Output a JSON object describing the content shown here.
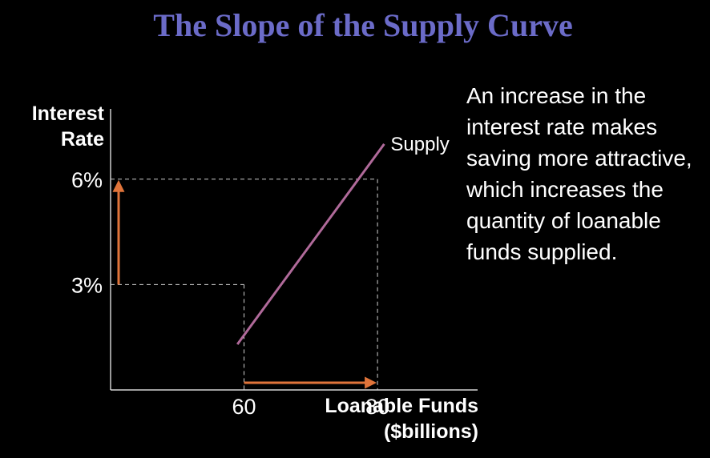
{
  "slide": {
    "title": "The Slope of the Supply Curve",
    "caption": "An increase in the interest rate makes saving more attractive, which increases the quantity of loanable funds supplied."
  },
  "chart_data": {
    "type": "line",
    "title": "",
    "ylabel_lines": [
      "Interest",
      "Rate"
    ],
    "xlabel_lines": [
      "Loanable Funds",
      "($billions)"
    ],
    "xlim": [
      40,
      95
    ],
    "ylim": [
      0,
      8
    ],
    "x_ticks": [
      60,
      80
    ],
    "y_ticks": [
      3,
      6
    ],
    "y_tick_labels": [
      "3%",
      "6%"
    ],
    "grid": false,
    "series": [
      {
        "name": "Supply",
        "x": [
          59,
          81
        ],
        "y": [
          1.3,
          7.0
        ],
        "color": "#b06a9a"
      }
    ],
    "reference_points": [
      {
        "x": 60,
        "y": 3
      },
      {
        "x": 80,
        "y": 6
      }
    ],
    "arrows": [
      {
        "axis": "y",
        "from": 3,
        "to": 6,
        "color": "#e0743a"
      },
      {
        "axis": "x",
        "from": 60,
        "to": 80,
        "color": "#e0743a"
      }
    ]
  }
}
